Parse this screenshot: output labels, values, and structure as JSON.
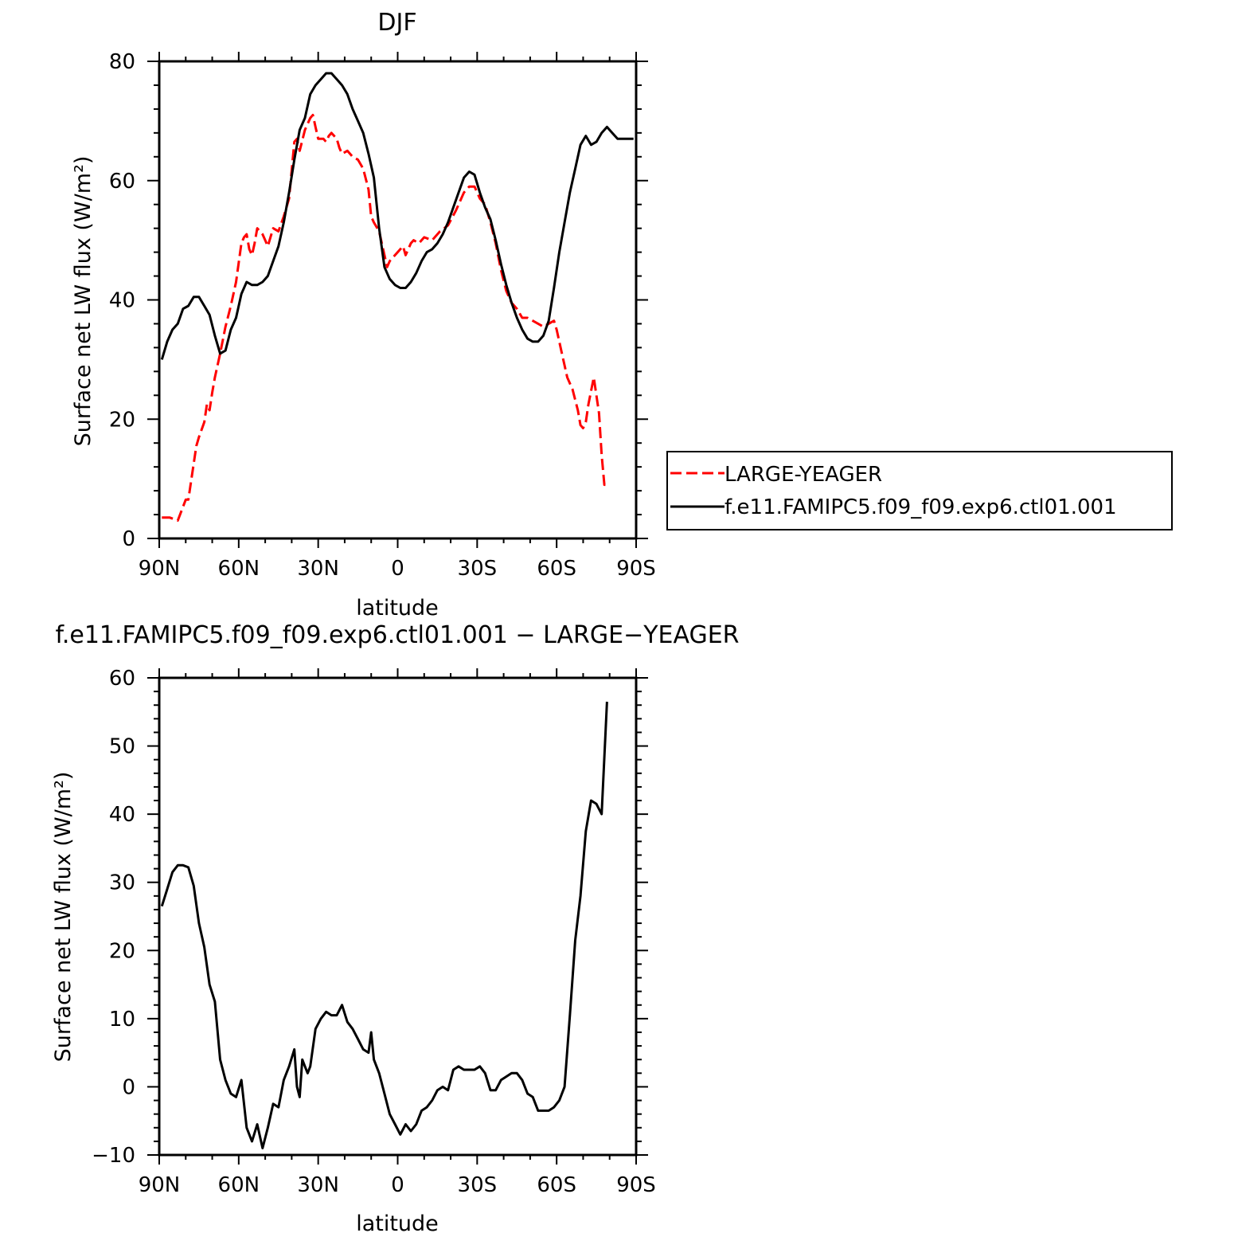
{
  "chart_data": [
    {
      "type": "line",
      "title": "DJF",
      "xlabel": "latitude",
      "ylabel": "Surface net LW flux (W/m²)",
      "xlim": [
        90,
        -90
      ],
      "ylim": [
        0,
        80
      ],
      "xticks": [
        90,
        60,
        30,
        0,
        -30,
        -60,
        -90
      ],
      "xtick_labels": [
        "90N",
        "60N",
        "30N",
        "0",
        "30S",
        "60S",
        "90S"
      ],
      "yticks": [
        0,
        20,
        40,
        60,
        80
      ],
      "ytick_labels": [
        "0",
        "20",
        "40",
        "60",
        "80"
      ],
      "legend": "right",
      "series": [
        {
          "name": "LARGE-YEAGER",
          "color": "#ff0000",
          "dash": "dashed",
          "x": [
            89,
            86,
            83,
            80,
            79,
            78,
            76,
            75,
            73,
            72,
            71,
            70,
            69,
            67,
            65,
            63,
            61,
            59,
            58,
            57,
            56,
            55,
            54,
            53,
            51,
            49,
            47,
            45,
            43,
            41,
            39,
            38,
            37,
            35,
            33,
            32,
            31,
            30,
            29,
            28,
            27,
            26,
            25,
            23,
            22,
            21,
            19,
            17,
            15,
            13,
            11,
            10,
            9,
            7,
            5,
            4,
            3,
            1,
            -1,
            -2,
            -3,
            -5,
            -6,
            -8,
            -10,
            -13,
            -16,
            -19,
            -22,
            -25,
            -27,
            -29,
            -31,
            -33,
            -35,
            -37,
            -39,
            -41,
            -43,
            -45,
            -47,
            -49,
            -51,
            -53,
            -55,
            -57,
            -59,
            -60,
            -62,
            -64,
            -66,
            -68,
            -69,
            -70,
            -71,
            -72,
            -74,
            -76,
            -77,
            -78,
            -79
          ],
          "y": [
            3.5,
            3.5,
            3.0,
            6.5,
            6.5,
            9.5,
            15.5,
            17.0,
            19.5,
            22.5,
            21.5,
            24.5,
            27.0,
            31.0,
            35.5,
            39.0,
            43.0,
            49.5,
            50.5,
            51.0,
            48.5,
            47.5,
            49.5,
            52.0,
            51.0,
            49.0,
            52.0,
            51.5,
            54.0,
            57.0,
            66.5,
            67.0,
            65.0,
            68.5,
            70.5,
            71.0,
            69.0,
            67.0,
            67.0,
            67.0,
            66.5,
            67.5,
            68.0,
            67.0,
            65.5,
            64.5,
            65.0,
            64.0,
            63.5,
            62.0,
            58.5,
            54.0,
            53.0,
            51.5,
            47.5,
            45.5,
            46.5,
            47.5,
            48.5,
            49.0,
            47.5,
            49.5,
            50.0,
            49.5,
            50.5,
            50.0,
            51.5,
            52.5,
            55.0,
            58.0,
            59.0,
            59.0,
            57.0,
            56.0,
            53.0,
            49.5,
            45.0,
            41.5,
            39.5,
            38.5,
            37.0,
            37.0,
            36.5,
            36.0,
            35.5,
            36.0,
            36.5,
            35.0,
            31.0,
            27.0,
            25.0,
            21.5,
            19.0,
            18.5,
            19.5,
            22.5,
            27.0,
            21.0,
            14.0,
            9.0,
            9.0
          ]
        },
        {
          "name": "f.e11.FAMIPC5.f09_f09.exp6.ctl01.001",
          "color": "#000000",
          "dash": "solid",
          "x": [
            89,
            87,
            85,
            83,
            81,
            79,
            77,
            75,
            73,
            71,
            69,
            67,
            65,
            63,
            61,
            59,
            57,
            55,
            53,
            51,
            49,
            47,
            45,
            43,
            41,
            39,
            37,
            35,
            33,
            31,
            29,
            27,
            25,
            23,
            21,
            19,
            17,
            15,
            13,
            11,
            9,
            7,
            5,
            3,
            1,
            -1,
            -3,
            -5,
            -7,
            -9,
            -11,
            -13,
            -15,
            -17,
            -19,
            -21,
            -23,
            -25,
            -27,
            -29,
            -31,
            -33,
            -35,
            -37,
            -39,
            -41,
            -43,
            -45,
            -47,
            -49,
            -51,
            -53,
            -55,
            -57,
            -59,
            -61,
            -63,
            -65,
            -67,
            -69,
            -71,
            -73,
            -75,
            -77,
            -79,
            -81,
            -83,
            -85,
            -87,
            -89
          ],
          "y": [
            30.0,
            33.0,
            35.0,
            36.0,
            38.5,
            39.0,
            40.5,
            40.5,
            39.0,
            37.5,
            34.0,
            31.0,
            31.5,
            35.0,
            37.0,
            41.0,
            43.0,
            42.5,
            42.5,
            43.0,
            44.0,
            46.5,
            49.0,
            53.0,
            58.0,
            63.5,
            68.5,
            70.5,
            74.5,
            76.0,
            77.0,
            78.0,
            78.0,
            77.0,
            76.0,
            74.5,
            72.0,
            70.0,
            68.0,
            64.5,
            60.5,
            52.0,
            45.5,
            43.5,
            42.5,
            42.0,
            42.0,
            43.0,
            44.5,
            46.5,
            48.0,
            48.5,
            49.5,
            51.0,
            53.0,
            55.5,
            58.0,
            60.5,
            61.5,
            61.0,
            58.0,
            55.5,
            53.5,
            50.0,
            46.0,
            42.5,
            39.5,
            37.0,
            35.0,
            33.5,
            33.0,
            33.0,
            34.0,
            36.5,
            42.0,
            48.0,
            53.0,
            58.0,
            62.0,
            66.0,
            67.5,
            66.0,
            66.5,
            68.0,
            69.0,
            68.0,
            67.0,
            67.0,
            67.0,
            67.0
          ]
        }
      ]
    },
    {
      "type": "line",
      "title": "f.e11.FAMIPC5.f09_f09.exp6.ctl01.001 − LARGE−YEAGER",
      "xlabel": "latitude",
      "ylabel": "Surface net LW flux (W/m²)",
      "xlim": [
        90,
        -90
      ],
      "ylim": [
        -10,
        60
      ],
      "xticks": [
        90,
        60,
        30,
        0,
        -30,
        -60,
        -90
      ],
      "xtick_labels": [
        "90N",
        "60N",
        "30N",
        "0",
        "30S",
        "60S",
        "90S"
      ],
      "yticks": [
        -10,
        0,
        10,
        20,
        30,
        40,
        50,
        60
      ],
      "ytick_labels": [
        "−10",
        "0",
        "10",
        "20",
        "30",
        "40",
        "50",
        "60"
      ],
      "series": [
        {
          "color": "#000000",
          "dash": "solid",
          "x": [
            89,
            87,
            85,
            83,
            81,
            79,
            77,
            75,
            73,
            71,
            69,
            67,
            65,
            63,
            61,
            59,
            57,
            55,
            53,
            51,
            49,
            47,
            45,
            43,
            41,
            39,
            38,
            37,
            36,
            35,
            34,
            33,
            31,
            29,
            27,
            25,
            23,
            21,
            19,
            17,
            15,
            13,
            11,
            10,
            9,
            7,
            5,
            3,
            1,
            -1,
            -3,
            -5,
            -7,
            -9,
            -11,
            -13,
            -15,
            -17,
            -19,
            -21,
            -23,
            -25,
            -27,
            -29,
            -31,
            -33,
            -35,
            -37,
            -39,
            -41,
            -43,
            -45,
            -47,
            -49,
            -51,
            -53,
            -55,
            -57,
            -59,
            -61,
            -63,
            -65,
            -67,
            -69,
            -71,
            -73,
            -75,
            -77,
            -79
          ],
          "y": [
            26.5,
            29.0,
            31.5,
            32.5,
            32.5,
            32.2,
            29.5,
            24.0,
            20.5,
            15.0,
            12.5,
            4.0,
            1.0,
            -1.0,
            -1.5,
            1.0,
            -6.0,
            -8.0,
            -5.5,
            -9.0,
            -6.0,
            -2.5,
            -3.0,
            1.0,
            3.0,
            5.5,
            0.0,
            -1.5,
            4.0,
            3.0,
            2.0,
            3.0,
            8.5,
            10.0,
            11.0,
            10.5,
            10.5,
            12.0,
            9.5,
            8.5,
            7.0,
            5.5,
            5.0,
            8.0,
            4.0,
            2.0,
            -1.0,
            -4.0,
            -5.5,
            -7.0,
            -5.5,
            -6.5,
            -5.5,
            -3.5,
            -3.0,
            -2.0,
            -0.5,
            0.0,
            -0.5,
            2.5,
            3.0,
            2.5,
            2.5,
            2.5,
            3.0,
            2.0,
            -0.5,
            -0.5,
            1.0,
            1.5,
            2.0,
            2.0,
            1.0,
            -1.0,
            -1.5,
            -3.5,
            -3.5,
            -3.5,
            -3.0,
            -2.0,
            0.0,
            10.5,
            21.5,
            28.0,
            37.5,
            42.0,
            41.5,
            40.0,
            56.5
          ]
        }
      ]
    }
  ]
}
